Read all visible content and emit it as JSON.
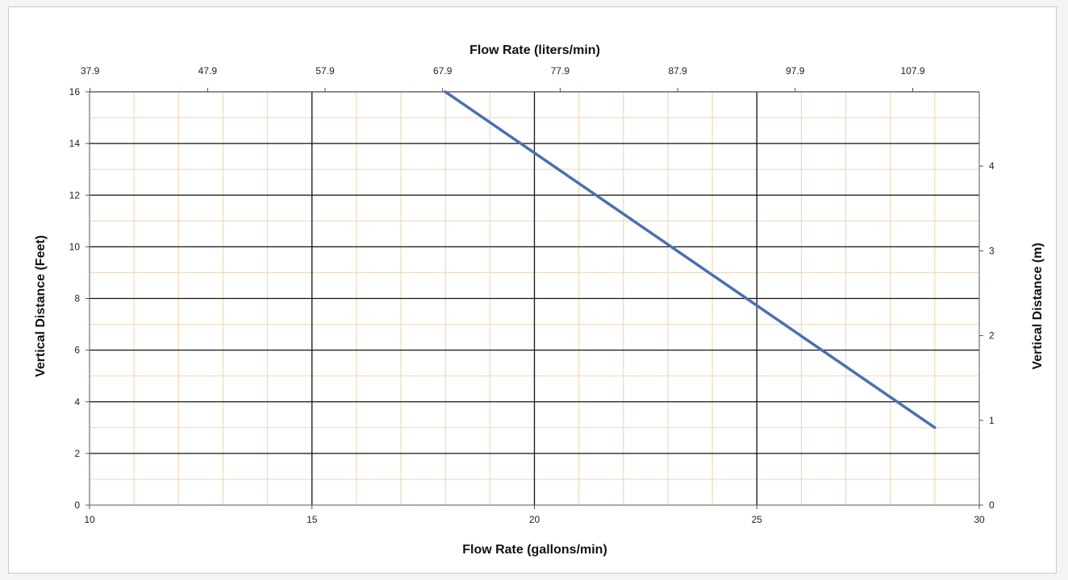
{
  "chart_data": {
    "type": "line",
    "xlabel": "Flow Rate (gallons/min)",
    "x2label": "Flow Rate (liters/min)",
    "ylabel": "Vertical Distance (Feet)",
    "y2label": "Vertical Distance (m)",
    "xlim": [
      10,
      30
    ],
    "ylim": [
      0,
      16
    ],
    "y2lim": [
      0,
      4.8768
    ],
    "x_ticks": [
      "10",
      "15",
      "20",
      "25",
      "30"
    ],
    "x2_ticks": [
      "37.9",
      "47.9",
      "57.9",
      "67.9",
      "77.9",
      "87.9",
      "97.9",
      "107.9"
    ],
    "y_ticks": [
      "0",
      "2",
      "4",
      "6",
      "8",
      "10",
      "12",
      "14",
      "16"
    ],
    "y2_ticks": [
      "0",
      "1",
      "2",
      "3",
      "4"
    ],
    "grid": true,
    "series": [
      {
        "x": [
          18,
          29
        ],
        "y": [
          16,
          3
        ],
        "color": "#4a70b0"
      }
    ],
    "colors": {
      "major_grid": "#111111",
      "minor_grid": "#f2d9b8",
      "line": "#4a70b0"
    }
  }
}
